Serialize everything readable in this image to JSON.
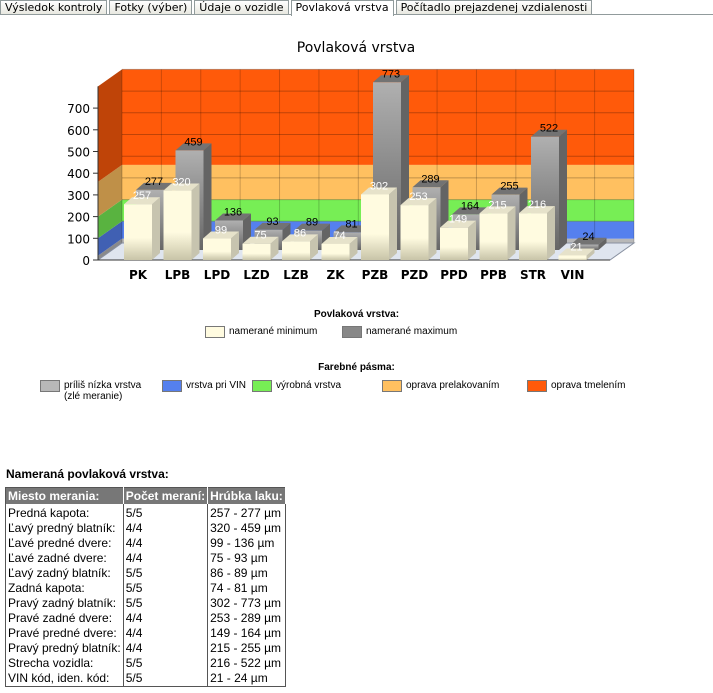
{
  "tabs": [
    "Výsledok kontroly",
    "Fotky (výber)",
    "Údaje o vozidle",
    "Povlaková vrstva",
    "Počítadlo prejazdenej vzdialenosti"
  ],
  "active_tab": 3,
  "chart_data": {
    "type": "bar",
    "title": "Povlaková vrstva",
    "categories": [
      "PK",
      "LPB",
      "LPD",
      "LZD",
      "LZB",
      "ZK",
      "PZB",
      "PZD",
      "PPD",
      "PPB",
      "STR",
      "VIN"
    ],
    "series": [
      {
        "name": "namerané minimum",
        "color": "#fffbe0",
        "values": [
          257,
          320,
          99,
          75,
          86,
          74,
          302,
          253,
          149,
          215,
          216,
          21
        ]
      },
      {
        "name": "namerané maximum",
        "color": "#808080",
        "values": [
          277,
          459,
          136,
          93,
          89,
          81,
          773,
          289,
          164,
          255,
          522,
          24
        ]
      }
    ],
    "yticks": [
      0,
      100,
      200,
      300,
      400,
      500,
      600,
      700
    ],
    "ylim": [
      0,
      800
    ],
    "bands": [
      {
        "name": "príliš nízka vrstva (zlé meranie)",
        "from": 0,
        "to": 20,
        "color": "#b8b8b8"
      },
      {
        "name": "vrstva pri VIN",
        "from": 20,
        "to": 100,
        "color": "#5580ee"
      },
      {
        "name": "výrobná vrstva",
        "from": 100,
        "to": 200,
        "color": "#77ee55"
      },
      {
        "name": "oprava prelakovaním",
        "from": 200,
        "to": 360,
        "color": "#ffc060"
      },
      {
        "name": "oprava tmelením",
        "from": 360,
        "to": 800,
        "color": "#ff5a0a"
      }
    ],
    "legend_title": "Povlaková vrstva:",
    "bands_title": "Farebné pásma:"
  },
  "table": {
    "title": "Nameraná povlaková vrstva:",
    "headers": [
      "Miesto merania:",
      "Počet meraní:",
      "Hrúbka laku:"
    ],
    "rows": [
      [
        "Predná kapota:",
        "5/5",
        "257 - 277 µm"
      ],
      [
        "Ľavý predný blatník:",
        "4/4",
        "320 - 459 µm"
      ],
      [
        "Ľavé predné dvere:",
        "4/4",
        "99 - 136 µm"
      ],
      [
        "Ľavé zadné dvere:",
        "4/4",
        "75 - 93 µm"
      ],
      [
        "Ľavý zadný blatník:",
        "5/5",
        "86 - 89 µm"
      ],
      [
        "Zadná kapota:",
        "5/5",
        "74 - 81 µm"
      ],
      [
        "Pravý zadný blatník:",
        "5/5",
        "302 - 773 µm"
      ],
      [
        "Pravé zadné dvere:",
        "4/4",
        "253 - 289 µm"
      ],
      [
        "Pravé predné dvere:",
        "4/4",
        "149 - 164 µm"
      ],
      [
        "Pravý predný blatník:",
        "4/4",
        "215 - 255 µm"
      ],
      [
        "Strecha vozidla:",
        "5/5",
        "216 - 522 µm"
      ],
      [
        "VIN kód, iden. kód:",
        "5/5",
        "21 - 24 µm"
      ]
    ]
  }
}
